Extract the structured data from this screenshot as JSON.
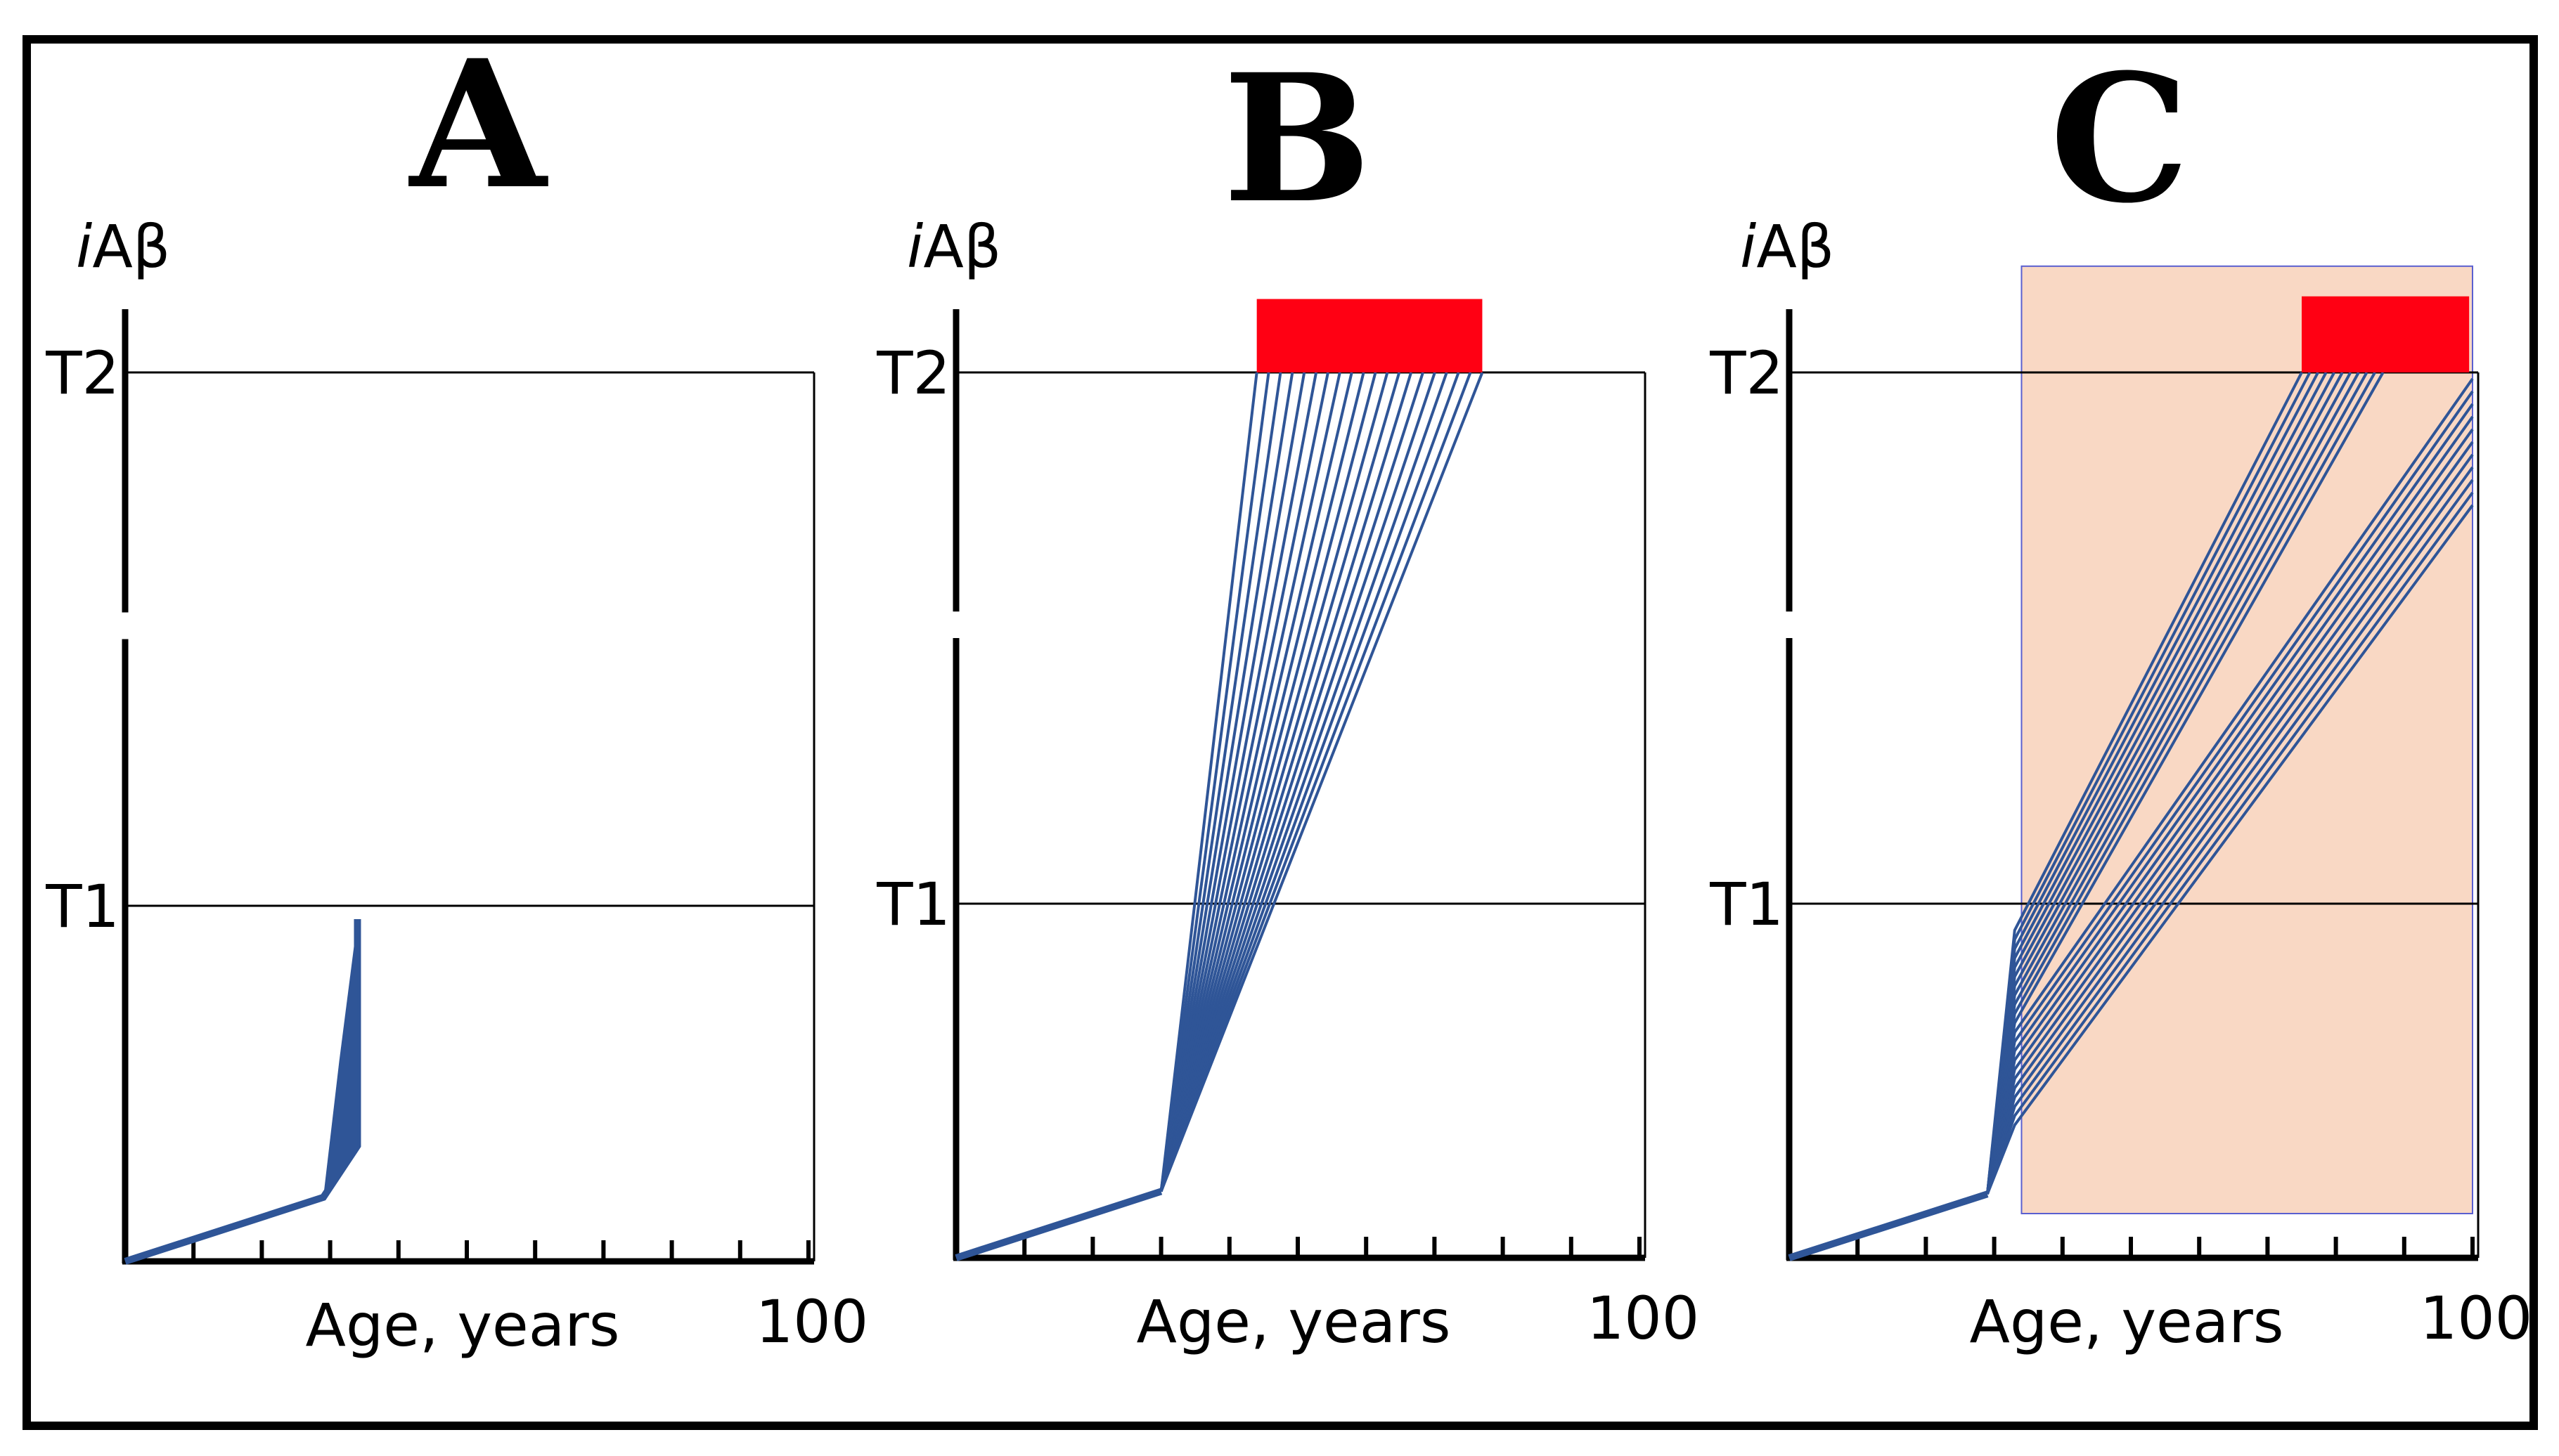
{
  "figure": {
    "description_free": true
  },
  "chart_data": [
    {
      "type": "line",
      "panel_label": "A",
      "ylabel_prefix": "i",
      "ylabel_main": "Aβ",
      "xlabel": "Age, years",
      "x_end_label": "100",
      "xlim": [
        0,
        100
      ],
      "ylim": [
        0,
        1.1
      ],
      "y_ticks": [
        {
          "label": "T1",
          "value": 0.4
        },
        {
          "label": "T2",
          "value": 1.0
        }
      ],
      "x_tick_count": 10,
      "y_axis_break": [
        0.7,
        0.73
      ],
      "series": [
        {
          "name": "pathway",
          "x": [
            0,
            29,
            34,
            34
          ],
          "y": [
            0,
            0.072,
            0.13,
            0.385
          ]
        }
      ],
      "accent_colors": {
        "line": "#2f5597",
        "marker": "#ff0013",
        "shade": "#f9d8c4"
      }
    },
    {
      "type": "line",
      "panel_label": "B",
      "ylabel_prefix": "i",
      "ylabel_main": "Aβ",
      "xlabel": "Age, years",
      "x_end_label": "100",
      "xlim": [
        0,
        100
      ],
      "ylim": [
        0,
        1.1
      ],
      "y_ticks": [
        {
          "label": "T1",
          "value": 0.4
        },
        {
          "label": "T2",
          "value": 1.0
        }
      ],
      "x_tick_count": 10,
      "y_axis_break": [
        0.7,
        0.73
      ],
      "series": [
        {
          "name": "fan",
          "origin": [
            0,
            0
          ],
          "knee": [
            30,
            0.075
          ],
          "end_x_from": 44,
          "end_x_to": 77,
          "end_y": 1.0,
          "line_count": 20
        }
      ],
      "red_bar": {
        "x_from": 44,
        "x_to": 77,
        "y_from": 1.0,
        "y_to": 1.075
      },
      "accent_colors": {
        "line": "#2f5597",
        "marker": "#ff0013",
        "shade": "#f9d8c4"
      }
    },
    {
      "type": "line",
      "panel_label": "C",
      "ylabel_prefix": "i",
      "ylabel_main": "Aβ",
      "xlabel": "Age, years",
      "x_end_label": "100",
      "xlim": [
        0,
        100
      ],
      "ylim": [
        0,
        1.1
      ],
      "y_ticks": [
        {
          "label": "T1",
          "value": 0.4
        },
        {
          "label": "T2",
          "value": 1.0
        }
      ],
      "x_tick_count": 10,
      "y_axis_break": [
        0.7,
        0.73
      ],
      "series": [
        {
          "name": "fan",
          "origin": [
            0,
            0
          ],
          "knee": [
            29,
            0.072
          ],
          "branch_x": 33,
          "branch_y_from": 0.15,
          "branch_y_to": 0.37,
          "end_x_from": 75,
          "end_x_to": 100,
          "end_y_top": 1.0,
          "end_y_bottom": 0.85,
          "line_count": 22
        }
      ],
      "red_bar": {
        "x_from": 75,
        "x_to": 99.5,
        "y_from": 1.0,
        "y_to": 1.078
      },
      "shaded_region": {
        "x_from": 34,
        "x_to": 100,
        "y_from": 0.05,
        "y_to": 1.12
      },
      "accent_colors": {
        "line": "#2f5597",
        "marker": "#ff0013",
        "shade": "#f9d8c4"
      }
    }
  ]
}
